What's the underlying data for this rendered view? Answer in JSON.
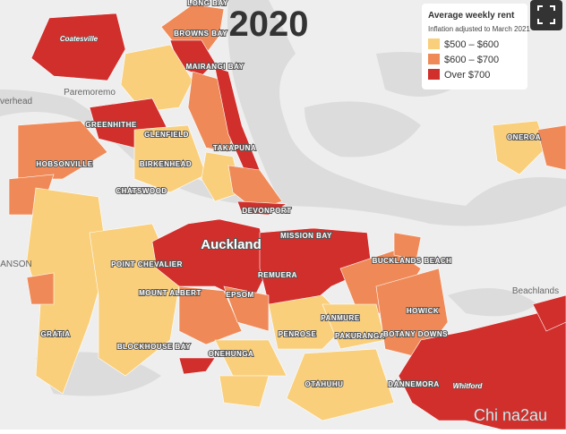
{
  "map": {
    "title": "2020",
    "legend": {
      "title": "Average weekly rent",
      "subtitle": "Inflation adjusted to March 2021",
      "items": [
        {
          "label": "$500 – $600",
          "color": "#f9cf7c"
        },
        {
          "label": "$600 – $700",
          "color": "#ef8a58"
        },
        {
          "label": "Over $700",
          "color": "#d12f2c"
        }
      ]
    },
    "places": [
      {
        "label": "Coatesville"
      },
      {
        "label": "LONG BAY"
      },
      {
        "label": "Paremoremo"
      },
      {
        "label": "BROWNS BAY"
      },
      {
        "label": "MAIRANGI BAY"
      },
      {
        "label": "verhead"
      },
      {
        "label": "GREENHITHE"
      },
      {
        "label": "GLENFIELD"
      },
      {
        "label": "TAKAPUNA"
      },
      {
        "label": "HOBSONVILLE"
      },
      {
        "label": "BIRKENHEAD"
      },
      {
        "label": "CHATSWOOD"
      },
      {
        "label": "DEVONPORT"
      },
      {
        "label": "ONEROA"
      },
      {
        "label": "Auckland"
      },
      {
        "label": "MISSION BAY"
      },
      {
        "label": "ANSON"
      },
      {
        "label": "POINT CHEVALIER"
      },
      {
        "label": "REMUERA"
      },
      {
        "label": "BUCKLANDS BEACH"
      },
      {
        "label": "Beachlands"
      },
      {
        "label": "MOUNT ALBERT"
      },
      {
        "label": "EPSOM"
      },
      {
        "label": "HOWICK"
      },
      {
        "label": "PANMURE"
      },
      {
        "label": "GRATIA"
      },
      {
        "label": "BLOCKHOUSE BAY"
      },
      {
        "label": "PENROSE"
      },
      {
        "label": "PAKURANGA"
      },
      {
        "label": "BOTANY DOWNS"
      },
      {
        "label": "ONEHUNGA"
      },
      {
        "label": "OTAHUHU"
      },
      {
        "label": "DANNEMORA"
      },
      {
        "label": "Whitford"
      }
    ],
    "watermark": "Chi na2au"
  }
}
